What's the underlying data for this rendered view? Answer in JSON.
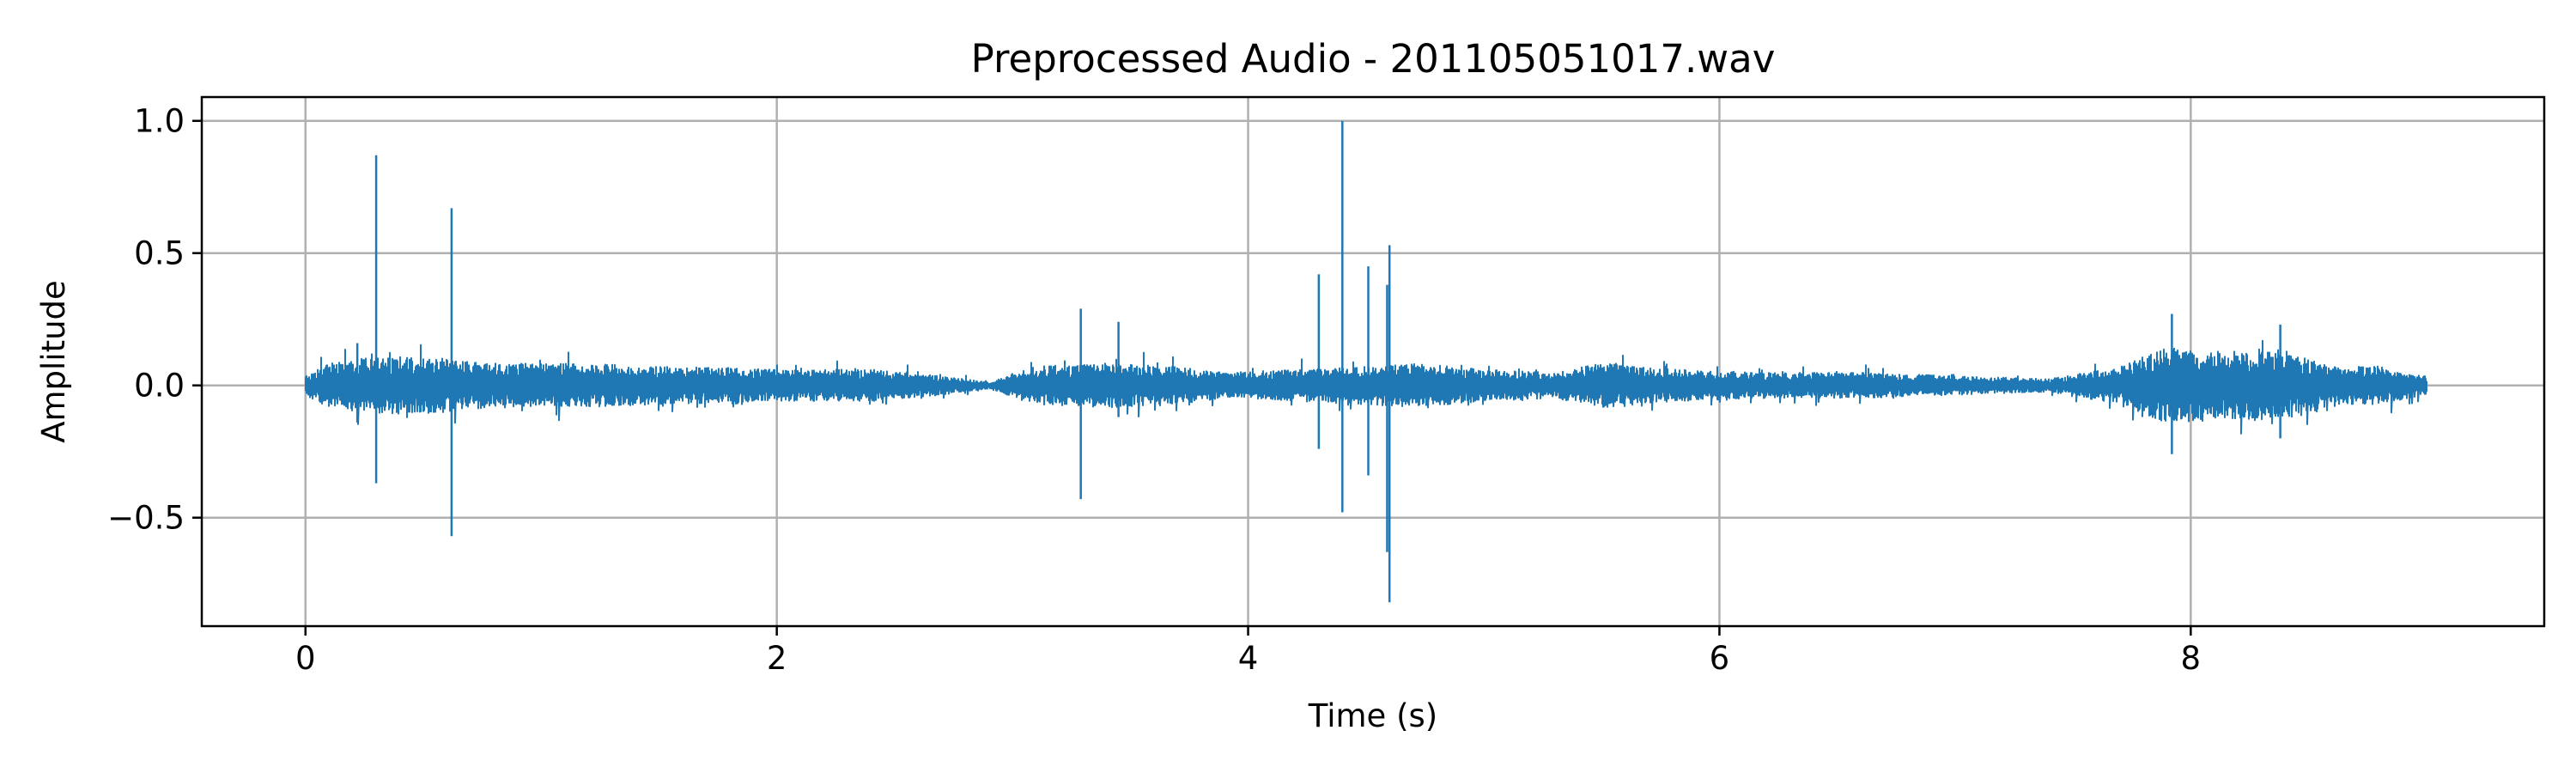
{
  "chart_data": {
    "type": "line",
    "title": "Preprocessed Audio - 201105051017.wav",
    "xlabel": "Time (s)",
    "ylabel": "Amplitude",
    "xlim": [
      -0.44,
      9.5
    ],
    "ylim": [
      -0.91,
      1.09
    ],
    "xticks": [
      0,
      2,
      4,
      6,
      8
    ],
    "xtick_labels": [
      "0",
      "2",
      "4",
      "6",
      "8"
    ],
    "yticks": [
      -0.5,
      0.0,
      0.5,
      1.0
    ],
    "ytick_labels": [
      "−0.5",
      "0.0",
      "0.5",
      "1.0"
    ],
    "grid": true,
    "line_color": "#1f77b4",
    "duration_s": 9.0,
    "series": [
      {
        "envelope_time_s": [
          0,
          0.1,
          0.3,
          0.5,
          0.8,
          1.1,
          1.5,
          2.0,
          2.4,
          2.7,
          2.9,
          3.1,
          3.4,
          3.7,
          3.9,
          4.2,
          4.5,
          4.7,
          5.0,
          5.3,
          5.5,
          5.8,
          6.2,
          6.6,
          7.0,
          7.4,
          7.7,
          7.9,
          8.1,
          8.3,
          8.45,
          8.6,
          8.8,
          9.0
        ],
        "envelope_amplitude": [
          0.03,
          0.07,
          0.09,
          0.09,
          0.07,
          0.07,
          0.06,
          0.05,
          0.05,
          0.03,
          0.01,
          0.06,
          0.07,
          0.06,
          0.04,
          0.05,
          0.06,
          0.07,
          0.05,
          0.04,
          0.07,
          0.05,
          0.04,
          0.04,
          0.03,
          0.02,
          0.06,
          0.12,
          0.11,
          0.11,
          0.1,
          0.06,
          0.06,
          0.03
        ],
        "spikes": [
          {
            "t": 0.3,
            "max": 0.87,
            "min": -0.37
          },
          {
            "t": 0.62,
            "max": 0.67,
            "min": -0.57
          },
          {
            "t": 0.22,
            "max": 0.16,
            "min": -0.14
          },
          {
            "t": 3.29,
            "max": 0.29,
            "min": -0.43
          },
          {
            "t": 3.45,
            "max": 0.24,
            "min": -0.12
          },
          {
            "t": 4.3,
            "max": 0.42,
            "min": -0.24
          },
          {
            "t": 4.4,
            "max": 1.0,
            "min": -0.48
          },
          {
            "t": 4.51,
            "max": 0.45,
            "min": -0.34
          },
          {
            "t": 4.59,
            "max": 0.38,
            "min": -0.63
          },
          {
            "t": 4.6,
            "max": 0.53,
            "min": -0.82
          },
          {
            "t": 7.92,
            "max": 0.27,
            "min": -0.26
          },
          {
            "t": 8.38,
            "max": 0.23,
            "min": -0.2
          }
        ]
      }
    ]
  }
}
